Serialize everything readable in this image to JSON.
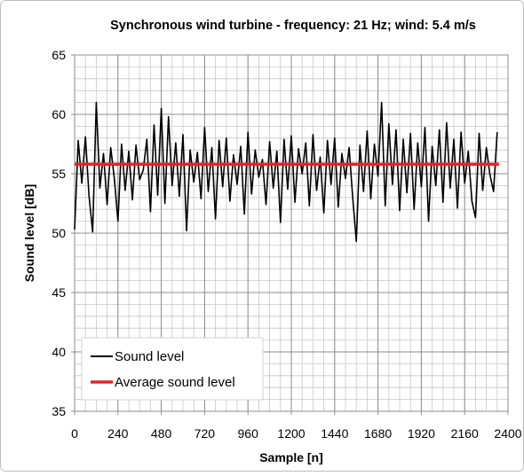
{
  "chart_data": {
    "type": "line",
    "title": "Synchronous wind turbine - frequency: 21 Hz; wind: 5.4 m/s",
    "x_label": "Sample [n]",
    "y_label": "Sound level [dB]",
    "xlim": [
      0,
      2400
    ],
    "ylim": [
      35,
      65
    ],
    "xticks": [
      0,
      240,
      480,
      720,
      960,
      1200,
      1440,
      1680,
      1920,
      2160,
      2400
    ],
    "yticks": [
      35,
      40,
      45,
      50,
      55,
      60,
      65
    ],
    "x_minor_step": 60,
    "y_minor_step": 1,
    "grid": true,
    "legend": "lower left",
    "series": [
      {
        "name": "Sound level",
        "color": "#000000",
        "x": [
          0,
          20,
          40,
          60,
          80,
          100,
          120,
          140,
          160,
          180,
          200,
          220,
          240,
          260,
          280,
          300,
          320,
          340,
          360,
          380,
          400,
          420,
          440,
          460,
          480,
          500,
          520,
          540,
          560,
          580,
          600,
          620,
          640,
          660,
          680,
          700,
          720,
          740,
          760,
          780,
          800,
          820,
          840,
          860,
          880,
          900,
          920,
          940,
          960,
          980,
          1000,
          1020,
          1040,
          1060,
          1080,
          1100,
          1120,
          1140,
          1160,
          1180,
          1200,
          1220,
          1240,
          1260,
          1280,
          1300,
          1320,
          1340,
          1360,
          1380,
          1400,
          1420,
          1440,
          1460,
          1480,
          1500,
          1520,
          1540,
          1560,
          1580,
          1600,
          1620,
          1640,
          1660,
          1680,
          1700,
          1720,
          1740,
          1760,
          1780,
          1800,
          1820,
          1840,
          1860,
          1880,
          1900,
          1920,
          1940,
          1960,
          1980,
          2000,
          2020,
          2040,
          2060,
          2080,
          2100,
          2120,
          2140,
          2160,
          2180,
          2200,
          2220,
          2240,
          2260,
          2280,
          2300,
          2320,
          2340
        ],
        "values": [
          50.3,
          57.8,
          54.2,
          58.1,
          53.1,
          50.1,
          61.0,
          53.8,
          56.7,
          52.4,
          57.2,
          54.6,
          51.0,
          57.5,
          53.6,
          56.9,
          52.8,
          57.4,
          54.5,
          55.3,
          57.9,
          51.8,
          59.1,
          53.2,
          60.5,
          52.5,
          59.8,
          54.0,
          57.6,
          53.1,
          58.3,
          50.2,
          57.0,
          54.3,
          56.8,
          52.9,
          58.9,
          53.5,
          57.2,
          51.2,
          57.8,
          53.9,
          58.0,
          52.7,
          56.6,
          54.1,
          57.3,
          51.6,
          58.5,
          53.3,
          57.0,
          54.7,
          56.2,
          52.4,
          57.7,
          53.8,
          56.9,
          50.9,
          57.9,
          53.7,
          58.2,
          52.6,
          57.1,
          55.0,
          57.6,
          52.3,
          58.3,
          53.6,
          56.4,
          51.7,
          57.8,
          54.1,
          58.0,
          52.2,
          56.7,
          54.6,
          57.2,
          53.0,
          49.3,
          57.4,
          53.5,
          58.6,
          52.9,
          57.5,
          54.8,
          61.0,
          52.3,
          59.2,
          54.1,
          58.7,
          51.9,
          57.9,
          53.4,
          58.4,
          52.0,
          57.6,
          53.9,
          58.9,
          51.0,
          57.3,
          54.0,
          58.7,
          52.6,
          59.3,
          53.8,
          57.9,
          52.1,
          58.5,
          54.2,
          56.9,
          52.7,
          51.3,
          58.4,
          53.6,
          57.2,
          54.9,
          53.5,
          58.5
        ]
      },
      {
        "name": "Average sound level",
        "color": "#e0262b",
        "x": [
          0,
          2350
        ],
        "values": [
          55.8,
          55.8
        ]
      }
    ]
  }
}
